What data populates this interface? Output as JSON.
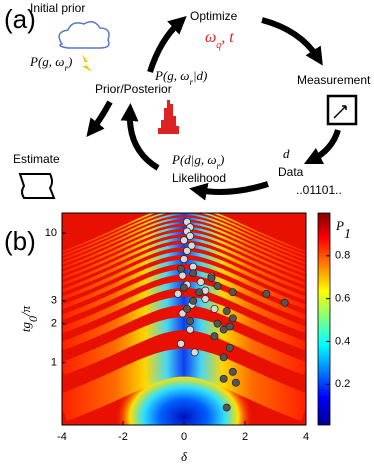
{
  "panel_a": {
    "label": "(a)",
    "initial_prior": "Initial prior",
    "prior_formula": [
      "P(g, ω",
      "r",
      ")"
    ],
    "optimize": "Optimize",
    "optimize_params": [
      "ω",
      "q",
      ", t"
    ],
    "posterior_formula": [
      "P(g, ω",
      "r",
      "|d)"
    ],
    "prior_posterior": "Prior/Posterior",
    "measurement": "Measurement",
    "data_symbol": "d",
    "data": "Data",
    "bits": "..01101..",
    "likelihood_formula": [
      "P(d|g, ω",
      "r",
      ")"
    ],
    "likelihood": "Likelihood",
    "estimate": "Estimate"
  },
  "chart_data": {
    "type": "scatter",
    "panel_label": "(b)",
    "x_label": "δ",
    "y_label": [
      "tg",
      "0",
      "/π"
    ],
    "xlim": [
      -4,
      4
    ],
    "xticks": [
      -4,
      -2,
      0,
      2,
      4
    ],
    "ylim": [
      0.33,
      14.3
    ],
    "yticks": [
      1,
      2,
      3,
      10
    ],
    "y_log": true,
    "colorbar": {
      "label": [
        "P",
        "1"
      ],
      "lim": [
        0.01,
        1.0
      ],
      "ticks": [
        0.2,
        0.4,
        0.6,
        0.8
      ]
    },
    "series": [
      {
        "color": "#d9d9d9",
        "x": [
          0.1,
          0.2,
          0.1,
          0.2,
          0.0,
          0.25,
          0.1,
          0.0,
          0.3,
          -0.05,
          0.55,
          0.1,
          -0.2,
          0.7,
          0.25,
          -0.05,
          1.0,
          0.2,
          -0.1,
          0.35,
          0.7,
          0.9
        ],
        "values": [
          12.2,
          11.1,
          10.3,
          9.5,
          8.8,
          8.0,
          7.3,
          6.3,
          5.5,
          4.7,
          4.2,
          4.0,
          3.4,
          3.1,
          2.8,
          2.4,
          2.6,
          1.8,
          1.4,
          1.2,
          3.6,
          4.6
        ]
      },
      {
        "color": "#555555",
        "x": [
          -0.1,
          0.3,
          0.9,
          1.1,
          0.5,
          1.6,
          2.7,
          3.3,
          0.3,
          1.4,
          1.6,
          1.1,
          1.5,
          0.2,
          1.3,
          1.0,
          1.5,
          1.3,
          1.6,
          1.3,
          1.7,
          1.4,
          0.1,
          0.0
        ],
        "values": [
          5.3,
          4.9,
          4.5,
          3.9,
          3.5,
          3.5,
          3.4,
          2.9,
          3.0,
          2.5,
          2.2,
          2.0,
          1.9,
          2.1,
          1.8,
          1.6,
          1.3,
          1.1,
          0.85,
          0.75,
          0.7,
          0.45,
          2.6,
          3.8
        ]
      }
    ]
  }
}
